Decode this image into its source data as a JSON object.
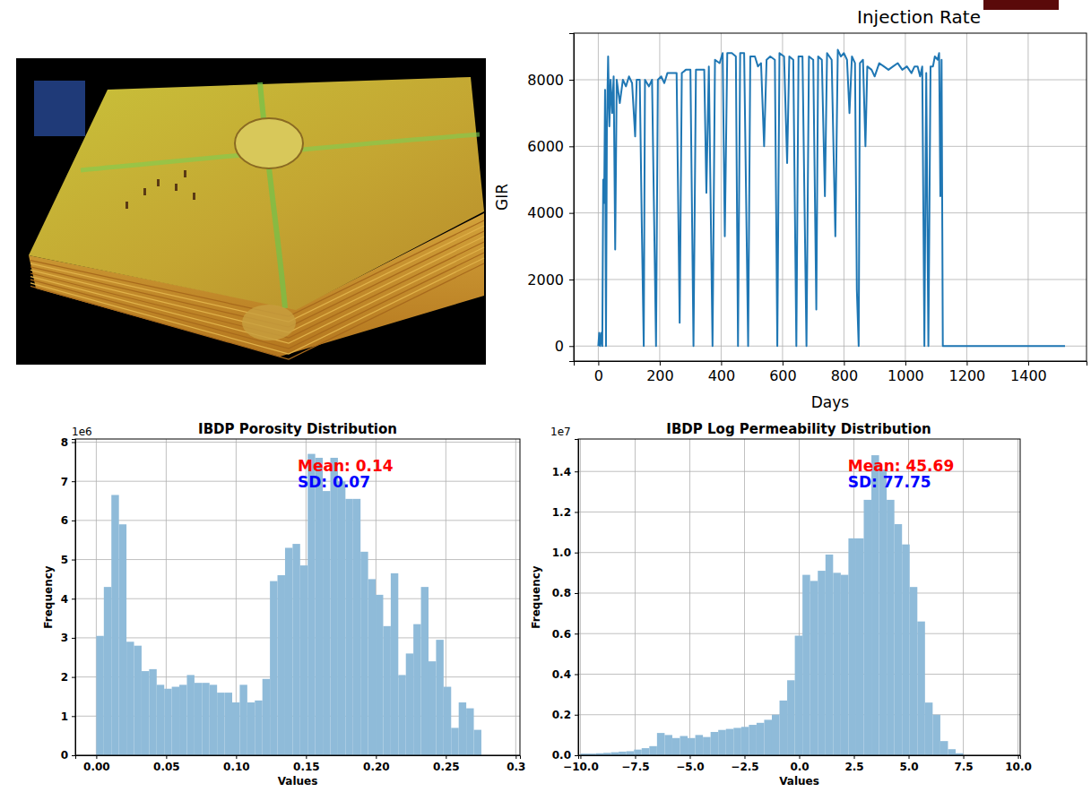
{
  "chart_data": [
    {
      "type": "line",
      "title": "Injection Rate",
      "x_label": "Days",
      "y_label": "GIR",
      "x": [
        0,
        3,
        6,
        10,
        13,
        16,
        19,
        22,
        25,
        28,
        32,
        36,
        40,
        45,
        50,
        55,
        60,
        70,
        80,
        90,
        100,
        110,
        120,
        125,
        135,
        142,
        148,
        152,
        165,
        175,
        188,
        194,
        205,
        215,
        225,
        240,
        255,
        265,
        272,
        285,
        300,
        310,
        318,
        330,
        345,
        352,
        360,
        372,
        380,
        395,
        405,
        412,
        420,
        435,
        448,
        455,
        462,
        475,
        488,
        495,
        510,
        520,
        530,
        540,
        548,
        560,
        575,
        583,
        590,
        605,
        615,
        622,
        635,
        645,
        652,
        665,
        678,
        686,
        700,
        710,
        716,
        728,
        738,
        745,
        760,
        772,
        780,
        790,
        800,
        810,
        818,
        826,
        836,
        842,
        848,
        852,
        862,
        870,
        876,
        890,
        900,
        915,
        930,
        945,
        960,
        975,
        990,
        1005,
        1020,
        1030,
        1040,
        1048,
        1055,
        1062,
        1068,
        1075,
        1082,
        1090,
        1096,
        1105,
        1110,
        1114,
        1118,
        1122,
        1200,
        1300,
        1400,
        1520
      ],
      "series": [
        {
          "color": "#1f77b4",
          "values": [
            0,
            400,
            0,
            400,
            0,
            5000,
            4300,
            7700,
            0,
            6600,
            8700,
            6600,
            8000,
            7000,
            8100,
            2900,
            8000,
            7300,
            8000,
            7800,
            8100,
            7900,
            6300,
            8000,
            8000,
            3400,
            0,
            8000,
            7800,
            8000,
            0,
            8000,
            8100,
            7900,
            8200,
            8200,
            8200,
            700,
            8200,
            8300,
            8300,
            0,
            8300,
            8300,
            8300,
            4600,
            8400,
            0,
            8600,
            8500,
            8800,
            3300,
            8800,
            8800,
            8700,
            0,
            8800,
            8800,
            0,
            8700,
            8700,
            8400,
            8500,
            6000,
            8600,
            8700,
            8600,
            0,
            8800,
            8700,
            5500,
            8700,
            8600,
            0,
            8700,
            8700,
            0,
            8700,
            8600,
            1100,
            8700,
            8600,
            4500,
            8800,
            8600,
            3300,
            8900,
            8700,
            8800,
            8600,
            7000,
            8700,
            8500,
            1700,
            0,
            8500,
            8600,
            6000,
            8400,
            8300,
            8100,
            8500,
            8400,
            8300,
            8400,
            8500,
            8300,
            8400,
            8200,
            8400,
            8400,
            8100,
            8400,
            0,
            8200,
            0,
            8400,
            8400,
            8700,
            8600,
            8800,
            4500,
            8600,
            0,
            0,
            0,
            0,
            0
          ]
        }
      ],
      "xlim": [
        -80,
        1590
      ],
      "ylim": [
        -450,
        9400
      ],
      "xticks": [
        0,
        200,
        400,
        600,
        800,
        1000,
        1200,
        1400
      ],
      "yticks": [
        0,
        2000,
        4000,
        6000,
        8000
      ],
      "grid": true
    },
    {
      "type": "histogram",
      "title": "IBDP Porosity Distribution",
      "x_label": "Values",
      "y_label": "Frequency",
      "y_multiplier_label": "1e6",
      "bins": [
        0,
        0.0054,
        0.0108,
        0.0162,
        0.0216,
        0.027,
        0.0324,
        0.0378,
        0.0432,
        0.0486,
        0.054,
        0.0594,
        0.0648,
        0.0702,
        0.0756,
        0.081,
        0.0864,
        0.0918,
        0.0972,
        0.1026,
        0.108,
        0.1134,
        0.1188,
        0.1242,
        0.1296,
        0.135,
        0.1404,
        0.1458,
        0.1512,
        0.1566,
        0.162,
        0.1674,
        0.1728,
        0.1782,
        0.1836,
        0.189,
        0.1944,
        0.1998,
        0.2052,
        0.2106,
        0.216,
        0.2214,
        0.2268,
        0.2322,
        0.2376,
        0.243,
        0.2484,
        0.2538,
        0.2592,
        0.2646,
        0.27,
        0.2754
      ],
      "values": [
        3.05,
        4.3,
        6.65,
        5.9,
        2.9,
        2.8,
        2.15,
        2.2,
        1.8,
        1.7,
        1.75,
        1.8,
        2.05,
        1.85,
        1.85,
        1.8,
        1.6,
        1.6,
        1.35,
        1.8,
        1.35,
        1.4,
        1.95,
        4.45,
        4.6,
        5.3,
        5.4,
        4.85,
        7.7,
        7.6,
        6.75,
        7.6,
        7.0,
        6.55,
        6.55,
        5.2,
        4.5,
        4.1,
        3.3,
        4.65,
        2.05,
        2.6,
        3.35,
        4.3,
        2.4,
        2.95,
        1.75,
        0.7,
        1.35,
        1.2,
        0.65
      ],
      "color": "#8fbbd9",
      "xlim": [
        -0.015,
        0.303
      ],
      "ylim": [
        0,
        8.08
      ],
      "xticks": [
        {
          "value": 0,
          "label": "0.00"
        },
        0.05,
        {
          "value": 0.1,
          "label": "0.10"
        },
        0.15,
        {
          "value": 0.2,
          "label": "0.20"
        },
        0.25,
        0.3
      ],
      "yticks": [
        0,
        1,
        2,
        3,
        4,
        5,
        6,
        7,
        8
      ],
      "grid": true,
      "annotations": [
        {
          "text": "Mean: 0.14",
          "color": "#ff0000"
        },
        {
          "text": "SD: 0.07",
          "color": "#0000ff"
        }
      ]
    },
    {
      "type": "histogram",
      "title": "IBDP Log Permeability Distribution",
      "x_label": "Values",
      "y_label": "Frequency",
      "y_multiplier_label": "1e7",
      "bins": [
        -10,
        -9.65,
        -9.3,
        -8.95,
        -8.6,
        -8.25,
        -7.9,
        -7.55,
        -7.2,
        -6.85,
        -6.5,
        -6.15,
        -5.8,
        -5.45,
        -5.1,
        -4.75,
        -4.4,
        -4.05,
        -3.7,
        -3.35,
        -3,
        -2.65,
        -2.3,
        -1.95,
        -1.6,
        -1.25,
        -0.9,
        -0.55,
        -0.2,
        0.15,
        0.5,
        0.85,
        1.2,
        1.55,
        1.9,
        2.25,
        2.6,
        2.95,
        3.3,
        3.65,
        4,
        4.35,
        4.7,
        5.05,
        5.4,
        5.75,
        6.1,
        6.45,
        6.8,
        7.15,
        7.5
      ],
      "values": [
        0.008,
        0.008,
        0.01,
        0.012,
        0.015,
        0.018,
        0.02,
        0.028,
        0.035,
        0.045,
        0.11,
        0.1,
        0.085,
        0.095,
        0.085,
        0.1,
        0.09,
        0.115,
        0.125,
        0.13,
        0.135,
        0.14,
        0.15,
        0.16,
        0.175,
        0.2,
        0.27,
        0.37,
        0.59,
        0.89,
        0.86,
        0.91,
        0.99,
        0.9,
        0.89,
        1.07,
        1.07,
        1.26,
        1.48,
        1.41,
        1.26,
        1.14,
        1.04,
        0.83,
        0.66,
        0.26,
        0.2,
        0.07,
        0.03,
        0.01
      ],
      "color": "#8fbbd9",
      "xlim": [
        -10.1,
        10.1
      ],
      "ylim": [
        0,
        1.56
      ],
      "xticks": [
        {
          "value": -10,
          "label": "−10.0"
        },
        {
          "value": -7.5,
          "label": "−7.5"
        },
        {
          "value": -5,
          "label": "−5.0"
        },
        {
          "value": -2.5,
          "label": "−2.5"
        },
        {
          "value": 0,
          "label": "0.0"
        },
        2.5,
        {
          "value": 5,
          "label": "5.0"
        },
        7.5,
        {
          "value": 10,
          "label": "10.0"
        }
      ],
      "yticks": [
        {
          "value": 0,
          "label": "0.0"
        },
        0.2,
        0.4,
        0.6,
        0.8,
        {
          "value": 1,
          "label": "1.0"
        },
        1.2,
        1.4
      ],
      "grid": true,
      "annotations": [
        {
          "text": "Mean: 45.69",
          "color": "#ff0000"
        },
        {
          "text": "SD: 77.75",
          "color": "#0000ff"
        }
      ]
    }
  ]
}
